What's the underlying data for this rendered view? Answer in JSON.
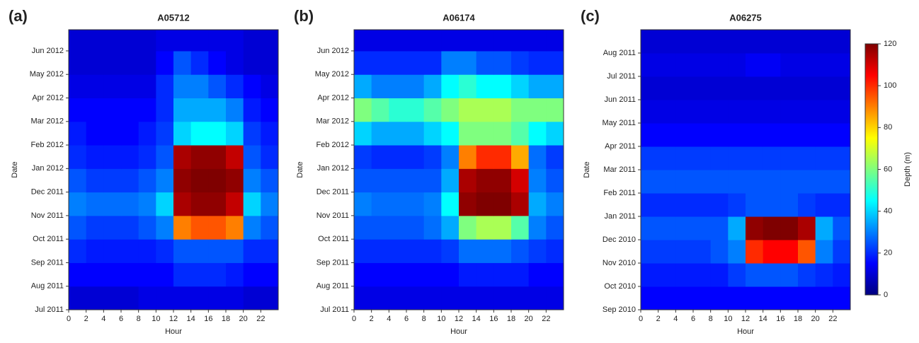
{
  "chart_data": [
    {
      "type": "heatmap",
      "panel": "(a)",
      "title": "A05712",
      "xlabel": "Hour",
      "ylabel": "Date",
      "xlim": [
        0,
        24
      ],
      "xticks": [
        0,
        2,
        4,
        6,
        8,
        10,
        12,
        14,
        16,
        18,
        20,
        22
      ],
      "ylim": [
        0,
        11.9
      ],
      "yticks": [
        {
          "value": 0,
          "label": "Jul 2011"
        },
        {
          "value": 1,
          "label": "Aug 2011"
        },
        {
          "value": 2,
          "label": "Sep 2011"
        },
        {
          "value": 3,
          "label": "Oct 2011"
        },
        {
          "value": 4,
          "label": "Nov 2011"
        },
        {
          "value": 5,
          "label": "Dec 2011"
        },
        {
          "value": 6,
          "label": "Jan 2012"
        },
        {
          "value": 7,
          "label": "Feb 2012"
        },
        {
          "value": 8,
          "label": "Mar 2012"
        },
        {
          "value": 9,
          "label": "Apr 2012"
        },
        {
          "value": 10,
          "label": "May 2012"
        },
        {
          "value": 11,
          "label": "Jun 2012"
        }
      ],
      "x_bins": [
        0,
        2,
        4,
        6,
        8,
        10,
        12,
        14,
        16,
        18,
        20,
        22,
        24
      ],
      "y_bins": [
        0,
        1,
        2,
        3,
        4,
        5,
        6,
        7,
        8,
        9,
        10,
        11,
        12
      ],
      "values": [
        [
          10,
          10,
          10,
          10,
          12,
          12,
          12,
          12,
          12,
          12,
          10,
          10
        ],
        [
          15,
          15,
          15,
          15,
          15,
          15,
          20,
          20,
          20,
          18,
          15,
          15
        ],
        [
          20,
          18,
          18,
          18,
          18,
          20,
          25,
          25,
          25,
          25,
          20,
          20
        ],
        [
          25,
          22,
          22,
          22,
          25,
          30,
          90,
          95,
          95,
          90,
          30,
          25
        ],
        [
          30,
          28,
          28,
          28,
          30,
          40,
          115,
          118,
          118,
          112,
          40,
          30
        ],
        [
          25,
          22,
          22,
          22,
          25,
          30,
          118,
          120,
          120,
          118,
          30,
          25
        ],
        [
          20,
          18,
          18,
          18,
          20,
          25,
          115,
          118,
          118,
          112,
          25,
          20
        ],
        [
          18,
          15,
          15,
          15,
          18,
          22,
          40,
          45,
          45,
          40,
          22,
          18
        ],
        [
          15,
          15,
          15,
          15,
          15,
          20,
          35,
          35,
          35,
          30,
          18,
          15
        ],
        [
          12,
          12,
          12,
          12,
          12,
          20,
          30,
          30,
          25,
          20,
          15,
          12
        ],
        [
          10,
          10,
          10,
          10,
          10,
          15,
          25,
          20,
          15,
          12,
          10,
          10
        ],
        [
          10,
          10,
          10,
          10,
          10,
          12,
          12,
          12,
          12,
          12,
          10,
          10
        ]
      ]
    },
    {
      "type": "heatmap",
      "panel": "(b)",
      "title": "A06174",
      "xlabel": "Hour",
      "ylabel": "Date",
      "xlim": [
        0,
        24
      ],
      "xticks": [
        0,
        2,
        4,
        6,
        8,
        10,
        12,
        14,
        16,
        18,
        20,
        22
      ],
      "ylim": [
        0,
        11.9
      ],
      "yticks": [
        {
          "value": 0,
          "label": "Jul 2011"
        },
        {
          "value": 1,
          "label": "Aug 2011"
        },
        {
          "value": 2,
          "label": "Sep 2011"
        },
        {
          "value": 3,
          "label": "Oct 2011"
        },
        {
          "value": 4,
          "label": "Nov 2011"
        },
        {
          "value": 5,
          "label": "Dec 2011"
        },
        {
          "value": 6,
          "label": "Jan 2012"
        },
        {
          "value": 7,
          "label": "Feb 2012"
        },
        {
          "value": 8,
          "label": "Mar 2012"
        },
        {
          "value": 9,
          "label": "Apr 2012"
        },
        {
          "value": 10,
          "label": "May 2012"
        },
        {
          "value": 11,
          "label": "Jun 2012"
        }
      ],
      "x_bins": [
        0,
        2,
        4,
        6,
        8,
        10,
        12,
        14,
        16,
        18,
        20,
        22,
        24
      ],
      "y_bins": [
        0,
        1,
        2,
        3,
        4,
        5,
        6,
        7,
        8,
        9,
        10,
        11,
        12
      ],
      "values": [
        [
          12,
          12,
          12,
          12,
          12,
          12,
          12,
          12,
          12,
          12,
          12,
          12
        ],
        [
          15,
          15,
          15,
          15,
          15,
          15,
          18,
          18,
          18,
          18,
          15,
          15
        ],
        [
          20,
          20,
          20,
          20,
          20,
          22,
          28,
          28,
          28,
          25,
          22,
          20
        ],
        [
          25,
          25,
          25,
          25,
          28,
          35,
          60,
          65,
          65,
          55,
          30,
          25
        ],
        [
          30,
          28,
          28,
          28,
          30,
          45,
          118,
          120,
          120,
          115,
          35,
          30
        ],
        [
          25,
          25,
          25,
          25,
          25,
          35,
          115,
          118,
          118,
          110,
          30,
          25
        ],
        [
          22,
          20,
          20,
          20,
          22,
          30,
          90,
          100,
          100,
          85,
          28,
          22
        ],
        [
          40,
          35,
          35,
          35,
          40,
          45,
          60,
          60,
          60,
          55,
          45,
          40
        ],
        [
          60,
          55,
          50,
          50,
          55,
          60,
          65,
          65,
          65,
          60,
          60,
          60
        ],
        [
          35,
          30,
          30,
          30,
          35,
          45,
          50,
          45,
          45,
          40,
          35,
          35
        ],
        [
          20,
          20,
          20,
          20,
          20,
          30,
          30,
          25,
          25,
          22,
          20,
          20
        ],
        [
          12,
          12,
          12,
          12,
          12,
          12,
          12,
          12,
          12,
          12,
          12,
          12
        ]
      ]
    },
    {
      "type": "heatmap",
      "panel": "(c)",
      "title": "A06275",
      "xlabel": "Hour",
      "ylabel": "Date",
      "xlim": [
        0,
        24
      ],
      "xticks": [
        0,
        2,
        4,
        6,
        8,
        10,
        12,
        14,
        16,
        18,
        20,
        22
      ],
      "ylim": [
        0,
        12
      ],
      "yticks": [
        {
          "value": 0,
          "label": "Sep 2010"
        },
        {
          "value": 1,
          "label": "Oct 2010"
        },
        {
          "value": 2,
          "label": "Nov 2010"
        },
        {
          "value": 3,
          "label": "Dec 2010"
        },
        {
          "value": 4,
          "label": "Jan 2011"
        },
        {
          "value": 5,
          "label": "Feb 2011"
        },
        {
          "value": 6,
          "label": "Mar 2011"
        },
        {
          "value": 7,
          "label": "Apr 2011"
        },
        {
          "value": 8,
          "label": "May 2011"
        },
        {
          "value": 9,
          "label": "Jun 2011"
        },
        {
          "value": 10,
          "label": "Jul 2011"
        },
        {
          "value": 11,
          "label": "Aug 2011"
        }
      ],
      "x_bins": [
        0,
        2,
        4,
        6,
        8,
        10,
        12,
        14,
        16,
        18,
        20,
        22,
        24
      ],
      "y_bins": [
        0,
        1,
        2,
        3,
        4,
        5,
        6,
        7,
        8,
        9,
        10,
        11,
        12
      ],
      "values": [
        [
          15,
          15,
          15,
          15,
          15,
          15,
          15,
          15,
          15,
          15,
          15,
          15
        ],
        [
          18,
          18,
          18,
          18,
          18,
          22,
          25,
          25,
          25,
          22,
          20,
          18
        ],
        [
          22,
          22,
          22,
          22,
          25,
          30,
          100,
          105,
          105,
          95,
          30,
          22
        ],
        [
          25,
          25,
          25,
          25,
          25,
          35,
          118,
          120,
          120,
          115,
          35,
          25
        ],
        [
          20,
          20,
          20,
          20,
          20,
          22,
          25,
          25,
          25,
          22,
          20,
          20
        ],
        [
          25,
          25,
          25,
          25,
          25,
          25,
          25,
          25,
          25,
          25,
          25,
          25
        ],
        [
          22,
          22,
          22,
          22,
          22,
          22,
          22,
          22,
          22,
          22,
          22,
          22
        ],
        [
          15,
          15,
          15,
          15,
          15,
          15,
          15,
          15,
          15,
          15,
          15,
          15
        ],
        [
          12,
          12,
          12,
          12,
          12,
          12,
          12,
          12,
          12,
          12,
          12,
          12
        ],
        [
          10,
          10,
          10,
          10,
          10,
          10,
          10,
          10,
          10,
          10,
          10,
          10
        ],
        [
          12,
          12,
          12,
          12,
          12,
          12,
          14,
          14,
          12,
          12,
          12,
          12
        ],
        [
          10,
          10,
          10,
          10,
          10,
          10,
          10,
          10,
          10,
          10,
          10,
          10
        ]
      ]
    }
  ],
  "colorbar": {
    "label": "Depth (m)",
    "zlim": [
      0,
      120
    ],
    "zticks": [
      0,
      20,
      40,
      60,
      80,
      100,
      120
    ],
    "colormap": [
      "#00007f",
      "#0000ff",
      "#007fff",
      "#00ffff",
      "#7fff7f",
      "#ffff00",
      "#ff7f00",
      "#ff0000",
      "#7f0000"
    ]
  }
}
